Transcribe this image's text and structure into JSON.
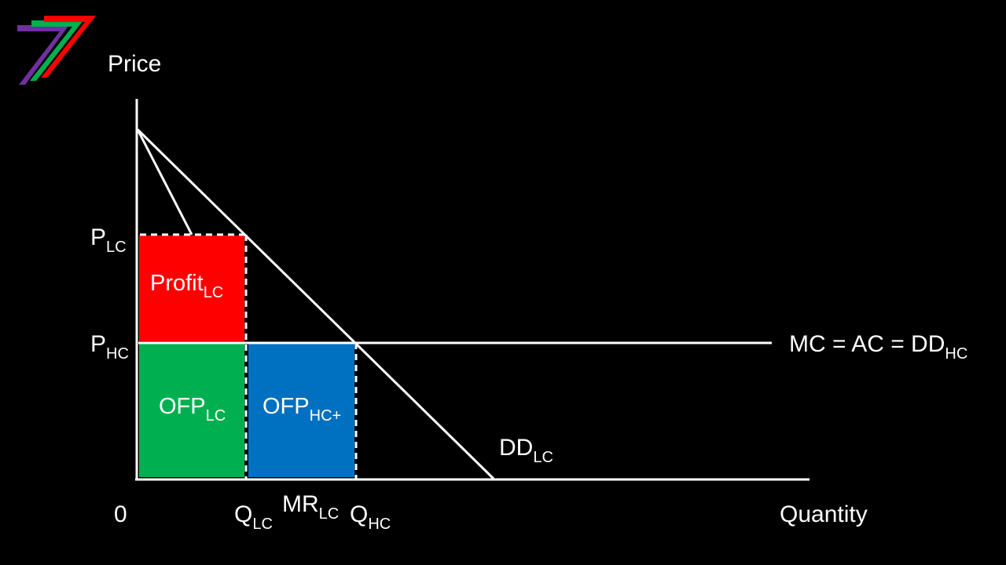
{
  "diagram": {
    "axis_labels": {
      "y": "Price",
      "x": "Quantity",
      "origin": "0"
    },
    "price_labels": [
      {
        "main": "P",
        "sub": "LC"
      },
      {
        "main": "P",
        "sub": "HC"
      }
    ],
    "quantity_labels": [
      {
        "main": "Q",
        "sub": "LC"
      },
      {
        "main": "Q",
        "sub": "HC"
      }
    ],
    "curve_labels": {
      "mc": {
        "main": "MC = AC = DD",
        "sub": "HC"
      },
      "dd": {
        "main": "DD",
        "sub": "LC"
      },
      "mr": {
        "main": "MR",
        "sub": "LC"
      }
    },
    "areas": {
      "profit": {
        "main": "Profit",
        "sub": "LC",
        "color": "#ff0000"
      },
      "ofp_lc": {
        "main": "OFP",
        "sub": "LC",
        "color": "#00b050"
      },
      "ofp_hc": {
        "main": "OFP",
        "sub": "HC+",
        "color": "#0070c0"
      }
    },
    "logo": {
      "colors": [
        "#7030a0",
        "#00b050",
        "#ff0000"
      ]
    },
    "colors": {
      "background": "#000000",
      "lines": "#ffffff"
    }
  }
}
